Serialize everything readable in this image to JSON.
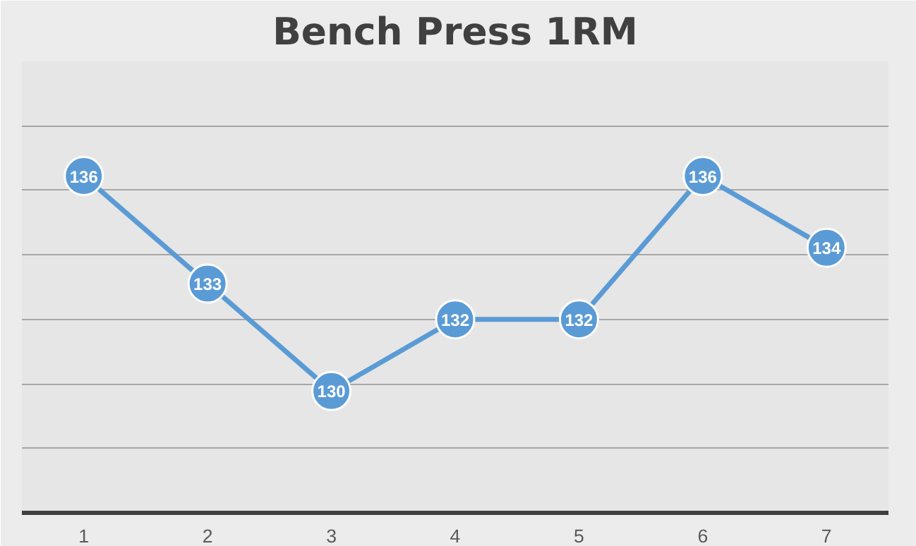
{
  "chart_data": {
    "type": "line",
    "title": "Bench Press 1RM",
    "categories": [
      "1",
      "2",
      "3",
      "4",
      "5",
      "6",
      "7"
    ],
    "series": [
      {
        "color": "#5b9bd5",
        "values": [
          136,
          133,
          130,
          132,
          132,
          136,
          134
        ]
      }
    ],
    "ylim": [
      126.6,
      139.2
    ],
    "yticks": [
      {
        "value": 126.6,
        "label": null
      },
      {
        "value": 128.4,
        "label": null
      },
      {
        "value": 130.2,
        "label": null
      },
      {
        "value": 132.0,
        "label": null
      },
      {
        "value": 133.8,
        "label": null
      },
      {
        "value": 135.6,
        "label": null
      },
      {
        "value": 137.4,
        "label": null
      }
    ],
    "grid": "y",
    "marker": "circle",
    "line_style": "solid",
    "data_labels": true,
    "tick_labels": "x"
  }
}
